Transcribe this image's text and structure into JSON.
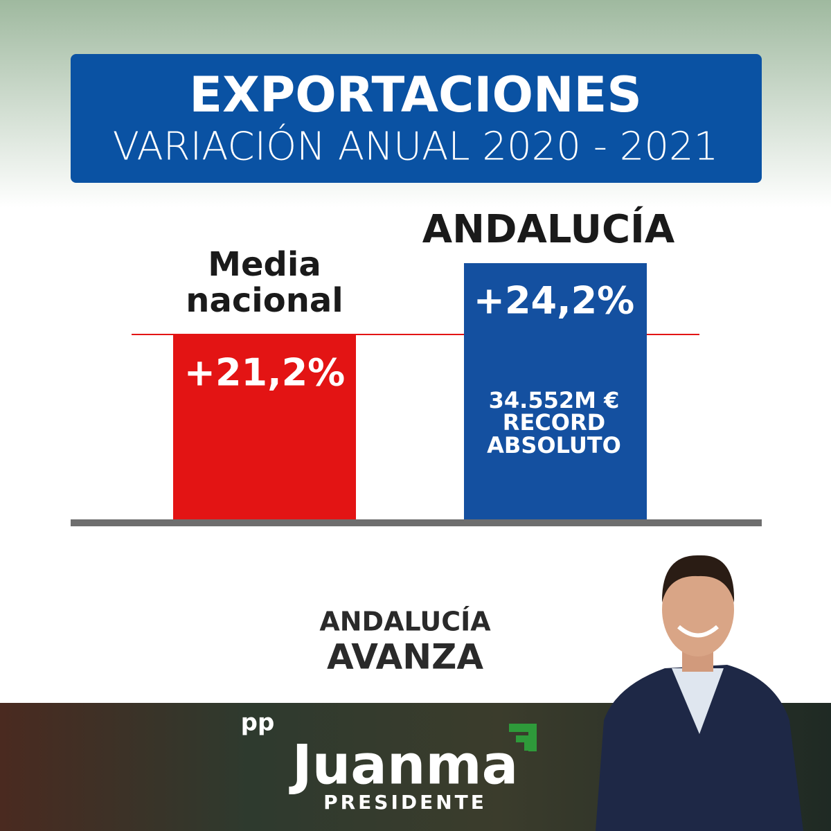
{
  "header": {
    "title": "EXPORTACIONES",
    "subtitle": "VARIACIÓN ANUAL 2020 - 2021"
  },
  "bars": [
    {
      "label": [
        "Media",
        "nacional"
      ],
      "value": "+21,2%"
    },
    {
      "label": [
        "ANDALUCÍA"
      ],
      "value": "+24,2%",
      "note": [
        "34.552M €",
        "RECORD",
        "ABSOLUTO"
      ]
    }
  ],
  "slogan": [
    "ANDALUCÍA",
    "AVANZA"
  ],
  "logo": {
    "party": "pp",
    "name": "Juanma",
    "role": "PRESIDENTE"
  }
}
